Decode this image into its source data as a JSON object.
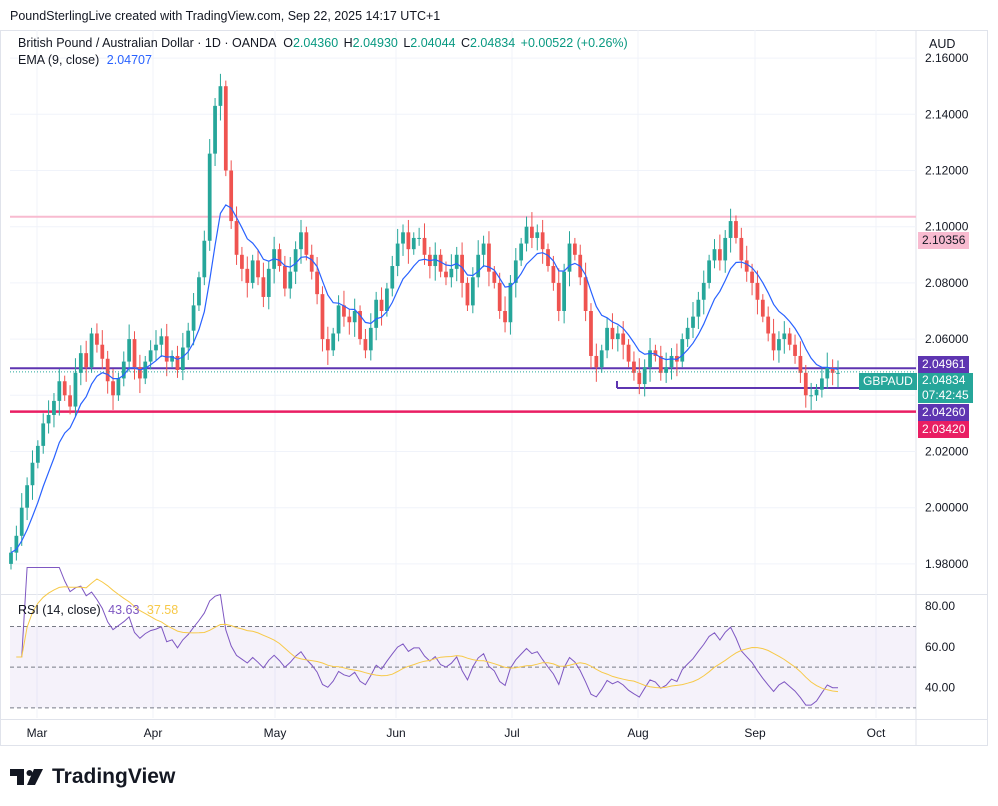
{
  "header": {
    "created": "PoundSterlingLive created with TradingView.com, Sep 22, 2025 14:17 UTC+1",
    "symbol": "British Pound / Australian Dollar · 1D · OANDA",
    "o_label": "O",
    "o": "2.04360",
    "h_label": "H",
    "h": "2.04930",
    "l_label": "L",
    "l": "2.04044",
    "c_label": "C",
    "c": "2.04834",
    "change": "+0.00522 (+0.26%)",
    "ema_label": "EMA (9, close)",
    "ema": "2.04707",
    "currency": "AUD"
  },
  "rsi": {
    "label": "RSI (14, close)",
    "value": "43.63",
    "ma": "37.58"
  },
  "tags": {
    "resistance": "2.10356",
    "upper_level": "2.04961",
    "symbol_tag": "GBPAUD",
    "last_price": "2.04834",
    "countdown": "07:42:45",
    "mid_level": "2.04260",
    "support": "2.03420"
  },
  "colors": {
    "up": "#26a69a",
    "down": "#ef5350",
    "ema": "#2962ff",
    "rsi": "#7e57c2",
    "rsi_ma": "#f7c948",
    "purple": "#5e35b1",
    "support": "#e91e63",
    "resistance": "#f8bbd0"
  },
  "footer_brand": "TradingView",
  "chart_data": {
    "type": "candlestick",
    "title": "British Pound / Australian Dollar · 1D · OANDA",
    "ylim": [
      1.97,
      2.17
    ],
    "yticks": [
      "2.16000",
      "2.14000",
      "2.12000",
      "2.10000",
      "2.08000",
      "2.06000",
      "2.04000",
      "2.02000",
      "2.00000",
      "1.98000"
    ],
    "xticks": [
      "Mar",
      "Apr",
      "May",
      "Jun",
      "Jul",
      "Aug",
      "Sep",
      "Oct"
    ],
    "rsi_ylim": [
      25,
      85
    ],
    "rsi_yticks": [
      "80.00",
      "60.00",
      "40.00"
    ],
    "rsi_bands": [
      70,
      50,
      30
    ],
    "horizontal_levels": [
      2.10356,
      2.04961,
      2.0426,
      2.0342
    ],
    "close": [
      1.984,
      1.99,
      2.0,
      2.008,
      2.016,
      2.022,
      2.03,
      2.033,
      2.038,
      2.045,
      2.04,
      2.036,
      2.048,
      2.055,
      2.05,
      2.062,
      2.058,
      2.053,
      2.045,
      2.04,
      2.046,
      2.052,
      2.06,
      2.05,
      2.046,
      2.052,
      2.056,
      2.058,
      2.061,
      2.052,
      2.054,
      2.049,
      2.057,
      2.063,
      2.072,
      2.082,
      2.095,
      2.126,
      2.143,
      2.15,
      2.12,
      2.102,
      2.09,
      2.085,
      2.08,
      2.088,
      2.082,
      2.075,
      2.085,
      2.092,
      2.086,
      2.078,
      2.084,
      2.092,
      2.098,
      2.09,
      2.084,
      2.076,
      2.06,
      2.056,
      2.062,
      2.072,
      2.068,
      2.066,
      2.07,
      2.06,
      2.056,
      2.064,
      2.074,
      2.07,
      2.078,
      2.086,
      2.094,
      2.098,
      2.092,
      2.096,
      2.096,
      2.09,
      2.086,
      2.09,
      2.084,
      2.082,
      2.085,
      2.09,
      2.08,
      2.072,
      2.082,
      2.09,
      2.094,
      2.084,
      2.08,
      2.07,
      2.066,
      2.08,
      2.088,
      2.094,
      2.1,
      2.096,
      2.098,
      2.092,
      2.086,
      2.08,
      2.07,
      2.084,
      2.094,
      2.09,
      2.082,
      2.07,
      2.054,
      2.05,
      2.056,
      2.064,
      2.06,
      2.062,
      2.058,
      2.052,
      2.048,
      2.044,
      2.05,
      2.056,
      2.054,
      2.048,
      2.05,
      2.054,
      2.052,
      2.06,
      2.064,
      2.068,
      2.074,
      2.08,
      2.088,
      2.092,
      2.088,
      2.096,
      2.102,
      2.096,
      2.088,
      2.084,
      2.08,
      2.074,
      2.068,
      2.062,
      2.056,
      2.06,
      2.062,
      2.058,
      2.054,
      2.048,
      2.04,
      2.04,
      2.042,
      2.046,
      2.05,
      2.048,
      2.048
    ]
  }
}
